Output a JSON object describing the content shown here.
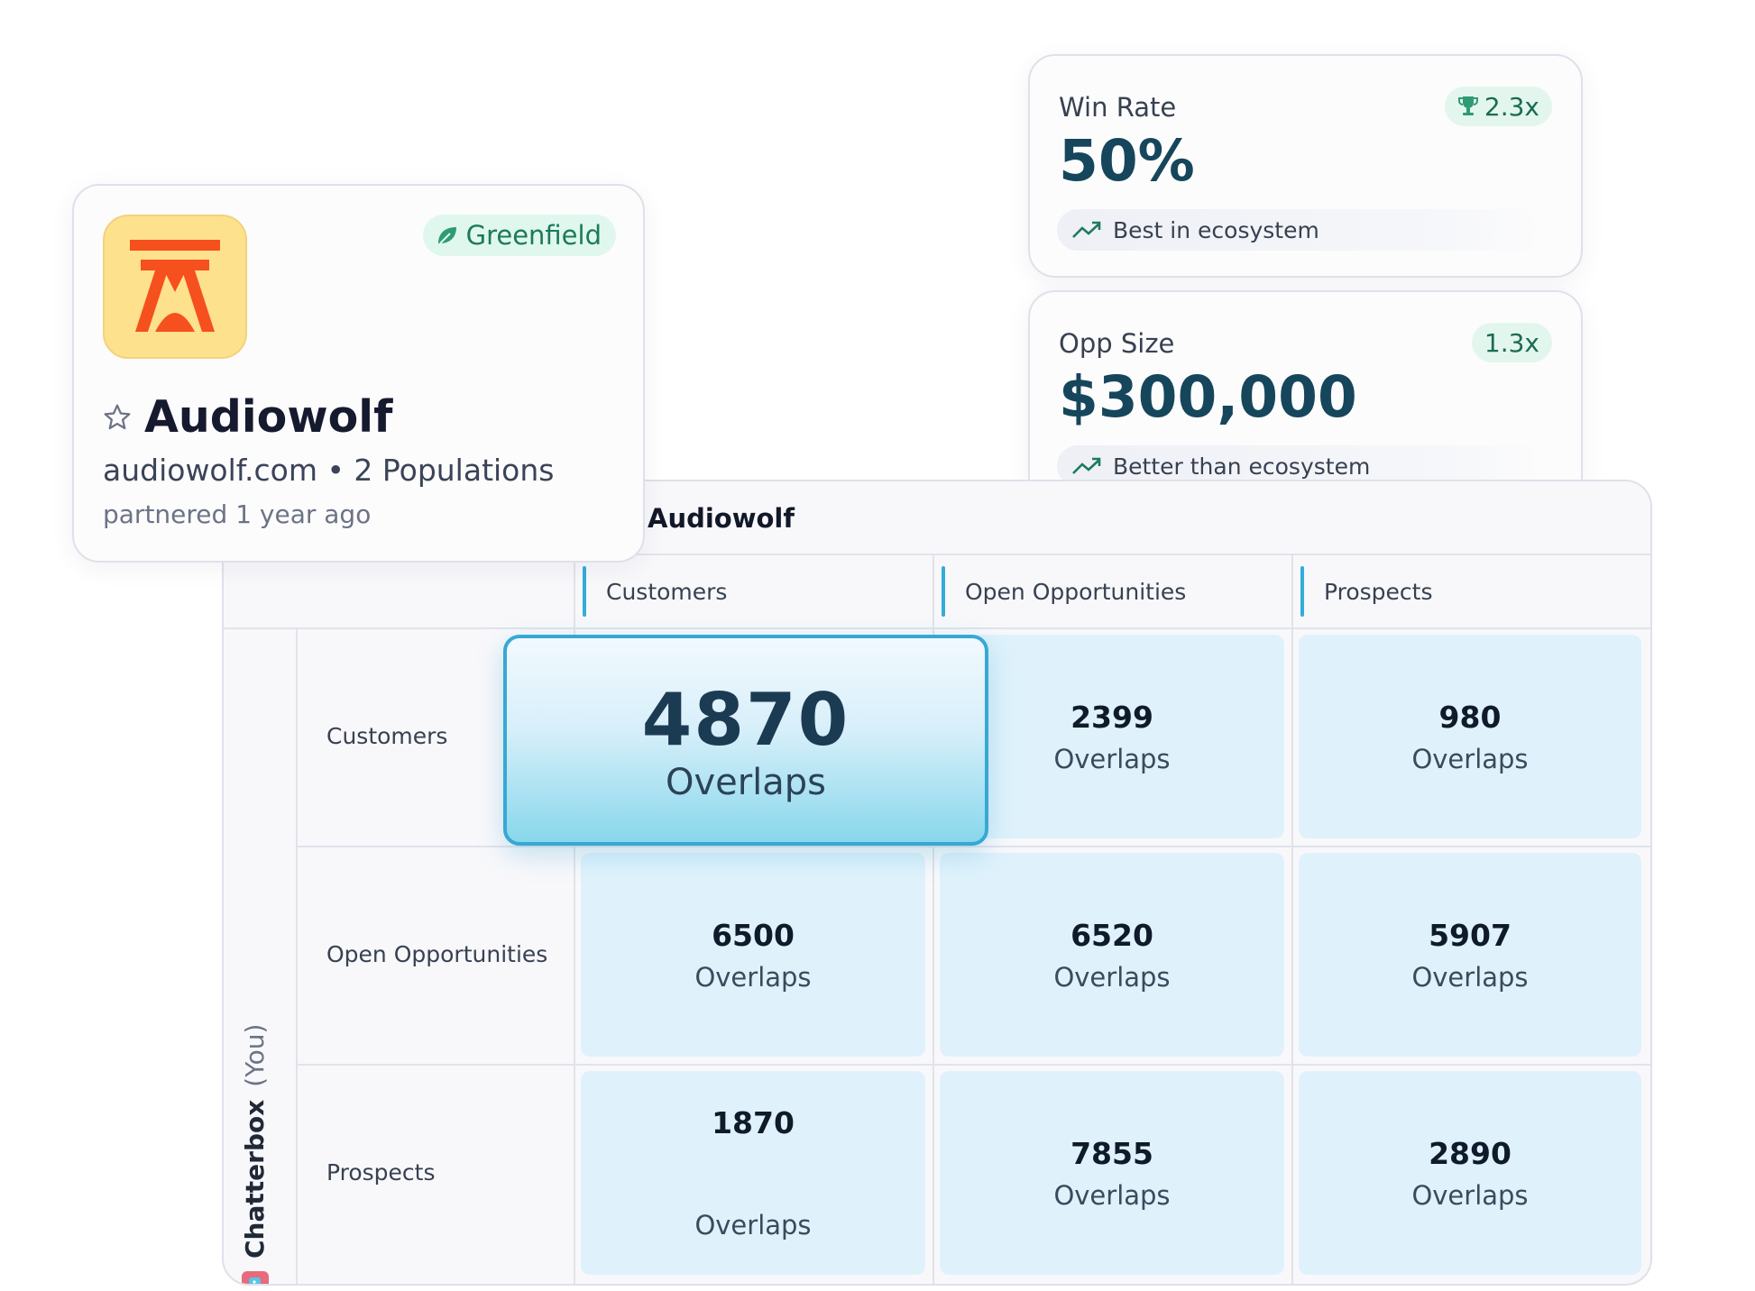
{
  "metrics": [
    {
      "label": "Win Rate",
      "value": "50%",
      "badge": "2.3x",
      "badge_icon": "trophy-icon",
      "note": "Best in ecosystem",
      "note_icon": "trend-up-icon"
    },
    {
      "label": "Opp Size",
      "value": "$300,000",
      "badge": "1.3x",
      "note": "Better than ecosystem",
      "note_icon": "trend-up-icon"
    }
  ],
  "company": {
    "name": "Audiowolf",
    "tag": "Greenfield",
    "tag_icon": "leaf-icon",
    "subtitle": "audiowolf.com • 2 Populations",
    "meta": "partnered 1 year ago",
    "logo_color": "#fee18d",
    "accent": "#f5501e"
  },
  "matrix": {
    "partner": "Audiowolf",
    "you_name": "Chatterbox",
    "you_tag": "(You)",
    "columns": [
      "Customers",
      "Open Opportunities",
      "Prospects"
    ],
    "rows": [
      {
        "label": "Customers",
        "cells": [
          {
            "value": "4870",
            "unit": "Overlaps"
          },
          {
            "value": "2399",
            "unit": "Overlaps"
          },
          {
            "value": "980",
            "unit": "Overlaps"
          }
        ]
      },
      {
        "label": "Open Opportunities",
        "cells": [
          {
            "value": "6500",
            "unit": "Overlaps"
          },
          {
            "value": "6520",
            "unit": "Overlaps"
          },
          {
            "value": "5907",
            "unit": "Overlaps"
          }
        ]
      },
      {
        "label": "Prospects",
        "cells": [
          {
            "value": "1870",
            "unit": "Overlaps"
          },
          {
            "value": "7855",
            "unit": "Overlaps"
          },
          {
            "value": "2890",
            "unit": "Overlaps"
          }
        ]
      }
    ]
  },
  "colors": {
    "accent_blue": "#34acd8",
    "brand_dark": "#16465b",
    "green": "#1b7a5a"
  }
}
